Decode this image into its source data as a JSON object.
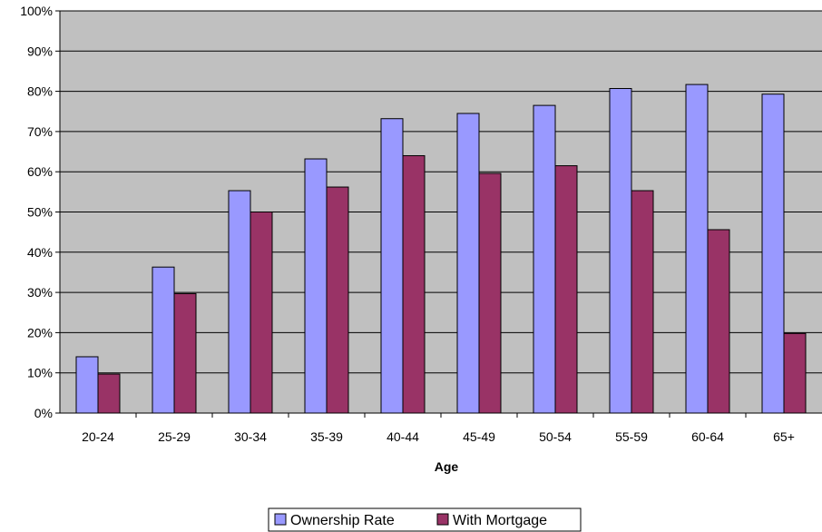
{
  "chart_data": {
    "type": "bar",
    "title": "",
    "xlabel": "Age",
    "ylabel": "",
    "categories": [
      "20-24",
      "25-29",
      "30-34",
      "35-39",
      "40-44",
      "45-49",
      "50-54",
      "55-59",
      "60-64",
      "65+"
    ],
    "series": [
      {
        "name": "Ownership Rate",
        "color": "#9999ff",
        "values": [
          14,
          36.3,
          55.3,
          63.2,
          73.2,
          74.5,
          76.5,
          80.7,
          81.7,
          79.3
        ]
      },
      {
        "name": "With Mortgage",
        "color": "#993366",
        "values": [
          9.7,
          29.7,
          50,
          56.2,
          64,
          59.6,
          61.5,
          55.3,
          45.6,
          19.8
        ]
      }
    ],
    "ylim": [
      0,
      100
    ],
    "yticks": [
      "0%",
      "10%",
      "20%",
      "30%",
      "40%",
      "50%",
      "60%",
      "70%",
      "80%",
      "90%",
      "100%"
    ],
    "plot_background": "#c0c0c0",
    "grid": true,
    "legend_position": "bottom-center"
  }
}
